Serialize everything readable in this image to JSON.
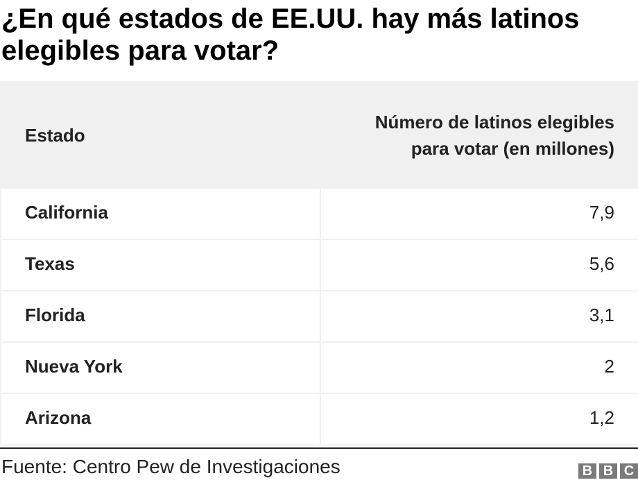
{
  "title": "¿En qué estados de EE.UU. hay más latinos elegibles para votar?",
  "table": {
    "headers": [
      "Estado",
      "Número de latinos elegibles para votar (en millones)"
    ],
    "rows": [
      [
        "California",
        "7,9"
      ],
      [
        "Texas",
        "5,6"
      ],
      [
        "Florida",
        "3,1"
      ],
      [
        "Nueva York",
        "2"
      ],
      [
        "Arizona",
        "1,2"
      ]
    ]
  },
  "chart_data": {
    "type": "table",
    "title": "¿En qué estados de EE.UU. hay más latinos elegibles para votar?",
    "columns": [
      "Estado",
      "Número de latinos elegibles para votar (en millones)"
    ],
    "categories": [
      "California",
      "Texas",
      "Florida",
      "Nueva York",
      "Arizona"
    ],
    "values": [
      7.9,
      5.6,
      3.1,
      2,
      1.2
    ]
  },
  "source": "Fuente: Centro Pew de Investigaciones",
  "logo": {
    "letters": [
      "B",
      "B",
      "C"
    ],
    "color": "#7a7a7a"
  },
  "colors": {
    "header_bg": "#f0f0f0",
    "text": "#222222"
  }
}
